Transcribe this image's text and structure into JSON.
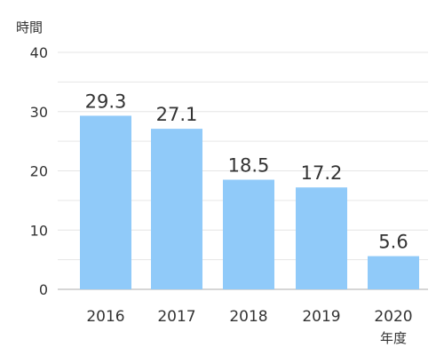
{
  "chart_data": {
    "type": "bar",
    "title": "",
    "ylabel": "時間",
    "xlabel": "年度",
    "categories": [
      "2016",
      "2017",
      "2018",
      "2019",
      "2020"
    ],
    "values": [
      29.3,
      27.1,
      18.5,
      17.2,
      5.6
    ],
    "data_labels": [
      "29.3",
      "27.1",
      "18.5",
      "17.2",
      "5.6"
    ],
    "ylim": [
      0,
      40
    ],
    "yticks": [
      0,
      10,
      20,
      30,
      40
    ],
    "grid": true,
    "legend": "none",
    "bar_color": "#90CAF9",
    "grid_color": "#E6E6E6"
  }
}
